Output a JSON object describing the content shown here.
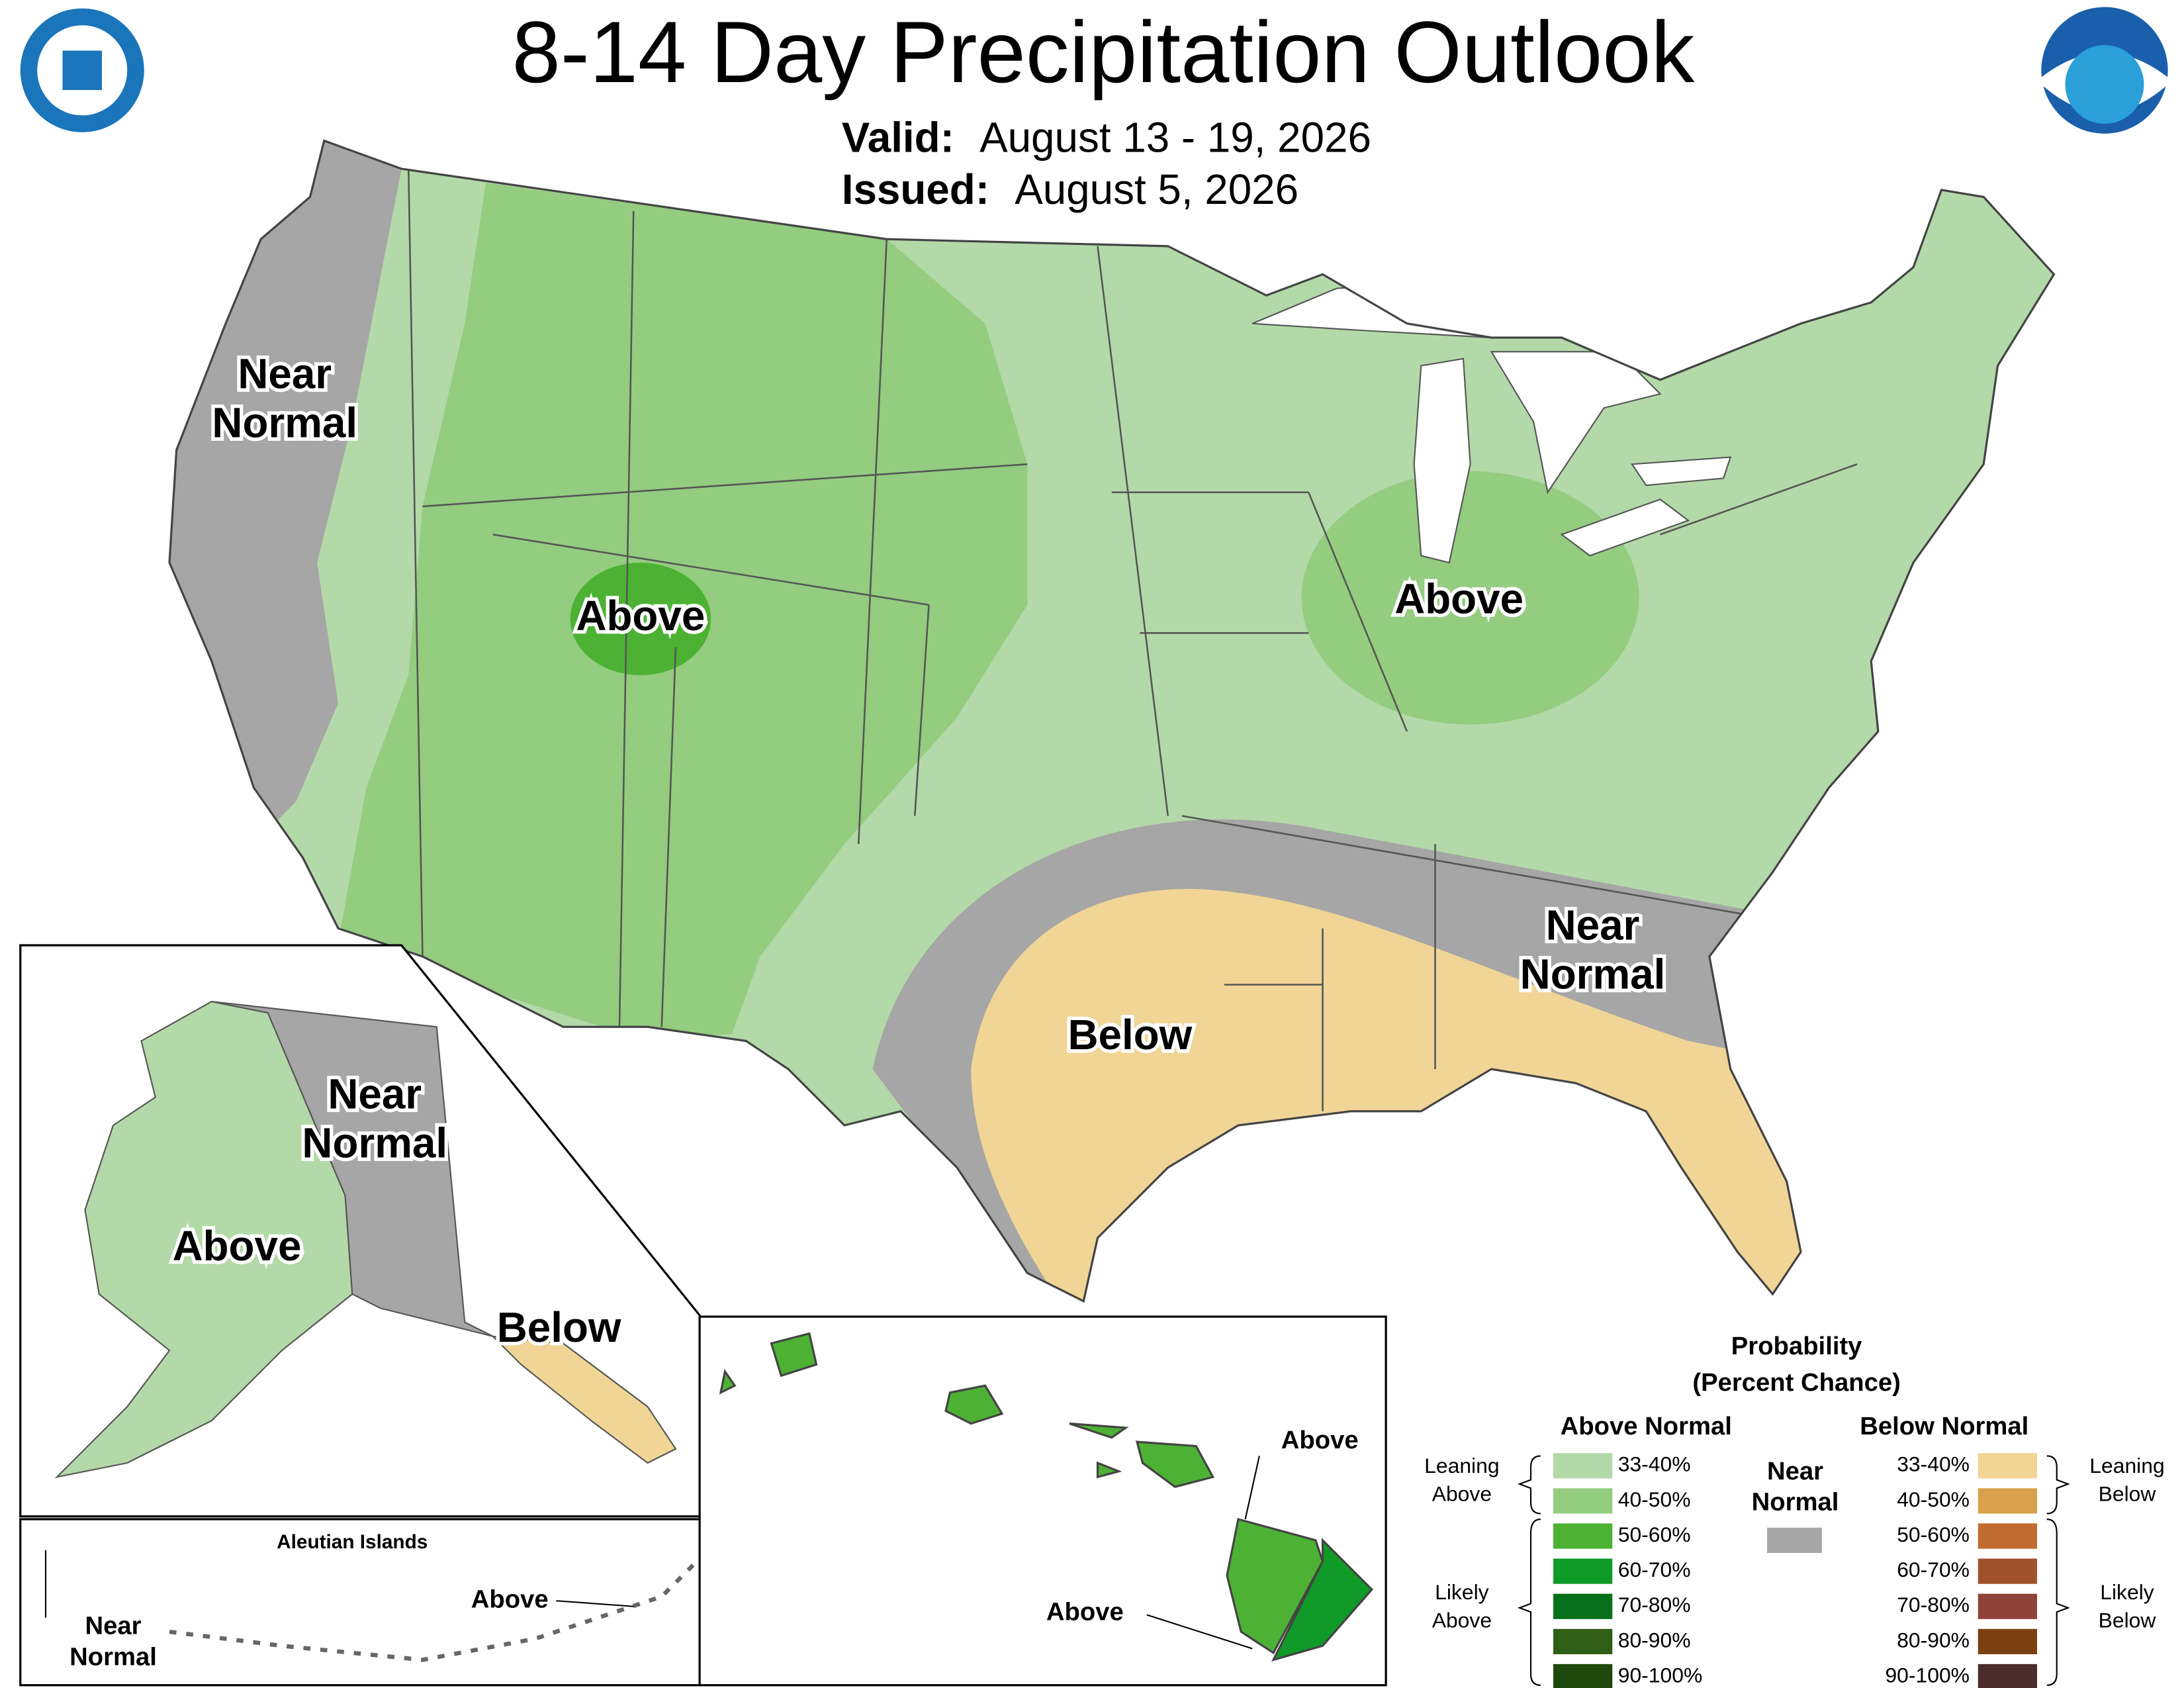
{
  "header": {
    "title": "8-14 Day Precipitation Outlook",
    "valid_label": "Valid:",
    "valid": "August 13 - 19, 2026",
    "issued_label": "Issued:",
    "issued": "August 5, 2026"
  },
  "map_labels": [
    {
      "lines": [
        "Near",
        "Normal"
      ]
    },
    {
      "lines": [
        "Above"
      ]
    },
    {
      "lines": [
        "Above"
      ]
    },
    {
      "lines": [
        "Below"
      ]
    },
    {
      "lines": [
        "Near",
        "Normal"
      ]
    }
  ],
  "alaska_labels": [
    {
      "lines": [
        "Near",
        "Normal"
      ]
    },
    {
      "lines": [
        "Above"
      ]
    },
    {
      "lines": [
        "Below"
      ]
    }
  ],
  "aleutian": {
    "title": "Aleutian Islands",
    "labels": [
      {
        "lines": [
          "Above"
        ]
      },
      {
        "lines": [
          "Near",
          "Normal"
        ]
      }
    ]
  },
  "hawaii_labels": [
    {
      "lines": [
        "Above"
      ]
    },
    {
      "lines": [
        "Above"
      ]
    }
  ],
  "legend": {
    "title": [
      "Probability",
      "(Percent Chance)"
    ],
    "above_header": "Above Normal",
    "below_header": "Below Normal",
    "near_header": [
      "Near",
      "Normal"
    ],
    "near_color": "#a6a6a6",
    "above": [
      {
        "range": "33-40%",
        "color": "#b3d9a8"
      },
      {
        "range": "40-50%",
        "color": "#94cc80"
      },
      {
        "range": "50-60%",
        "color": "#4db234"
      },
      {
        "range": "60-70%",
        "color": "#109a28"
      },
      {
        "range": "70-80%",
        "color": "#08701a"
      },
      {
        "range": "80-90%",
        "color": "#2f5e16"
      },
      {
        "range": "90-100%",
        "color": "#1f480c"
      }
    ],
    "below": [
      {
        "range": "33-40%",
        "color": "#f0d596"
      },
      {
        "range": "40-50%",
        "color": "#d9a24a"
      },
      {
        "range": "50-60%",
        "color": "#c26b30"
      },
      {
        "range": "60-70%",
        "color": "#a0522d"
      },
      {
        "range": "70-80%",
        "color": "#8e4238"
      },
      {
        "range": "80-90%",
        "color": "#7a4010"
      },
      {
        "range": "90-100%",
        "color": "#4a2c2c"
      }
    ],
    "brackets": {
      "leaning_above": [
        "Leaning",
        "Above"
      ],
      "likely_above": [
        "Likely",
        "Above"
      ],
      "leaning_below": [
        "Leaning",
        "Below"
      ],
      "likely_below": [
        "Likely",
        "Below"
      ]
    }
  }
}
